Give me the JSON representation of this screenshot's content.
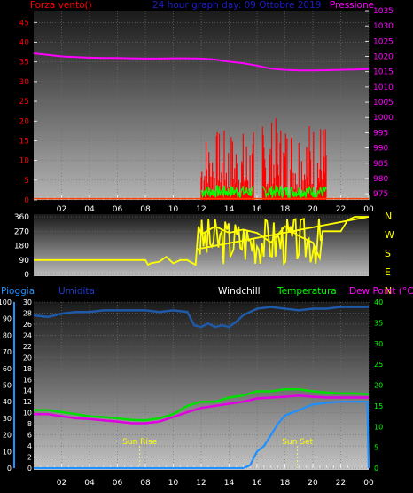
{
  "page": {
    "background": "#000000"
  },
  "chart_data": [
    {
      "type": "line",
      "panel": "wind-pressure",
      "left_title": "Forza vento()",
      "center_title": "24 hour graph day: 09 Ottobre 2019",
      "right_title": "Pressione",
      "x_ticks": [
        "02",
        "04",
        "06",
        "08",
        "10",
        "12",
        "14",
        "16",
        "18",
        "20",
        "22",
        "00"
      ],
      "left_axis": {
        "ticks": [
          "0",
          "5",
          "10",
          "15",
          "20",
          "25",
          "30",
          "35",
          "40",
          "45"
        ],
        "range": [
          0,
          48
        ],
        "color": "#ff0000"
      },
      "right_axis": {
        "ticks": [
          "975",
          "980",
          "985",
          "990",
          "995",
          "1000",
          "1005",
          "1010",
          "1015",
          "1020",
          "1025",
          "1030",
          "1035"
        ],
        "range": [
          973,
          1035
        ],
        "color": "#ff00ff"
      },
      "grid": true,
      "series": [
        {
          "name": "Pressione",
          "color": "#ff00ff",
          "x": [
            0,
            1,
            2,
            3,
            4,
            5,
            6,
            7,
            8,
            9,
            10,
            11,
            12,
            13,
            14,
            15,
            16,
            17,
            18,
            19,
            20,
            21,
            22,
            23,
            24
          ],
          "values": [
            1021,
            1020.5,
            1020,
            1019.8,
            1019.6,
            1019.5,
            1019.5,
            1019.4,
            1019.3,
            1019.3,
            1019.4,
            1019.4,
            1019.3,
            1019,
            1018.3,
            1017.8,
            1017,
            1016,
            1015.6,
            1015.4,
            1015.4,
            1015.5,
            1015.6,
            1015.7,
            1015.9
          ]
        }
      ],
      "wind_gust_bursts": [
        {
          "x_start": 12.0,
          "x_end": 15.8,
          "peak": 18
        },
        {
          "x_start": 16.4,
          "x_end": 21.0,
          "peak": 21
        }
      ],
      "wind_avg_color": "#00ff00",
      "wind_gust_color": "#ff0000"
    },
    {
      "type": "line",
      "panel": "wind-direction",
      "left_axis": {
        "ticks": [
          "0",
          "90",
          "180",
          "270",
          "360"
        ],
        "range": [
          0,
          360
        ]
      },
      "right_labels": [
        "N",
        "W",
        "S",
        "E",
        "N"
      ],
      "series": [
        {
          "name": "Direzione",
          "color": "#ffff00",
          "x": [
            0,
            1,
            2,
            3,
            4,
            5,
            6,
            7,
            8,
            8.2,
            8.4,
            9,
            9.5,
            10,
            10.5,
            11,
            11.6,
            11.8,
            12,
            13,
            14,
            15,
            16,
            17,
            18,
            19,
            20,
            20.5,
            20.7,
            21,
            22,
            22.5,
            23,
            24
          ],
          "values": [
            90,
            90,
            90,
            90,
            90,
            90,
            90,
            90,
            90,
            60,
            70,
            80,
            110,
            70,
            90,
            90,
            60,
            300,
            250,
            300,
            260,
            280,
            260,
            200,
            300,
            240,
            200,
            100,
            270,
            270,
            270,
            340,
            360,
            360
          ]
        }
      ]
    },
    {
      "type": "line",
      "panel": "rain-humidity-temp",
      "legend": [
        {
          "label": "Pioggia",
          "color": "#1e90ff"
        },
        {
          "label": "Umidita",
          "color": "#1e3cc8"
        },
        {
          "label": "Windchill",
          "color": "#ffffff"
        },
        {
          "label": "Temperatura",
          "color": "#00ff00"
        },
        {
          "label": "Dew Point (°C)",
          "color": "#ff00ff"
        }
      ],
      "left_outer_axis": {
        "ticks": [
          "0",
          "10",
          "20",
          "30",
          "40",
          "50",
          "60",
          "70",
          "80",
          "90",
          "100"
        ],
        "range": [
          0,
          100
        ],
        "color": "#1e90ff"
      },
      "left_inner_axis": {
        "ticks": [
          "0",
          "2",
          "4",
          "6",
          "8",
          "10",
          "12",
          "14",
          "16",
          "18",
          "20",
          "22",
          "24",
          "26",
          "28",
          "30"
        ],
        "range": [
          0,
          30
        ],
        "color": "#1e90ff"
      },
      "right_axis": {
        "ticks": [
          "0",
          "5",
          "10",
          "15",
          "20",
          "25",
          "30",
          "35",
          "40"
        ],
        "range": [
          0,
          40
        ],
        "color": "#00ff00"
      },
      "annotations": [
        {
          "label": "Sun Rise",
          "x": 7.6
        },
        {
          "label": "Sun Set",
          "x": 18.9
        }
      ],
      "series": [
        {
          "name": "Umidita",
          "color": "#1e5aa8",
          "x": [
            0,
            1,
            2,
            3,
            4,
            5,
            6,
            7,
            8,
            9,
            10,
            11,
            11.5,
            12,
            12.5,
            13,
            13.5,
            14,
            14.5,
            15,
            16,
            17,
            18,
            19,
            20,
            21,
            22,
            23,
            24
          ],
          "values": [
            92,
            91,
            93,
            94,
            94,
            95,
            95,
            95,
            95,
            94,
            95,
            94,
            86,
            85,
            87,
            85,
            86,
            85,
            88,
            92,
            96,
            97,
            96,
            95,
            96,
            96,
            97,
            97,
            97
          ]
        },
        {
          "name": "Temperatura",
          "color": "#00e000",
          "x": [
            0,
            1,
            2,
            3,
            4,
            5,
            6,
            7,
            8,
            9,
            10,
            11,
            12,
            13,
            14,
            15,
            16,
            17,
            18,
            19,
            20,
            21,
            22,
            23,
            24
          ],
          "values": [
            14,
            14,
            13.5,
            13,
            12.5,
            12.3,
            12,
            11.6,
            11.5,
            12,
            13,
            15,
            16,
            16,
            17,
            17.5,
            18.5,
            18.5,
            19,
            19,
            18.5,
            18.2,
            18,
            18,
            17.8
          ]
        },
        {
          "name": "Dew Point",
          "color": "#e000e0",
          "x": [
            0,
            1,
            2,
            3,
            4,
            5,
            6,
            7,
            8,
            9,
            10,
            11,
            12,
            13,
            14,
            15,
            16,
            17,
            18,
            19,
            20,
            21,
            22,
            23,
            24
          ],
          "values": [
            13,
            13,
            12.5,
            12,
            11.8,
            11.5,
            11.2,
            10.8,
            10.8,
            11.2,
            12.3,
            13.5,
            14.5,
            15,
            15.5,
            16,
            16.8,
            17,
            17.2,
            17.5,
            17.2,
            17,
            17,
            17,
            17
          ]
        },
        {
          "name": "Pioggia",
          "color": "#1e90ff",
          "x": [
            0,
            5,
            10,
            14,
            15,
            15.5,
            16,
            16.5,
            17,
            17.5,
            18,
            18.5,
            19,
            19.5,
            20,
            21,
            22,
            23,
            23.9,
            24
          ],
          "values": [
            0,
            0,
            0,
            0,
            0,
            0.5,
            3,
            4,
            6,
            8,
            9.5,
            10,
            10.5,
            11,
            11.5,
            11.8,
            12,
            12,
            12,
            0
          ]
        }
      ]
    }
  ]
}
